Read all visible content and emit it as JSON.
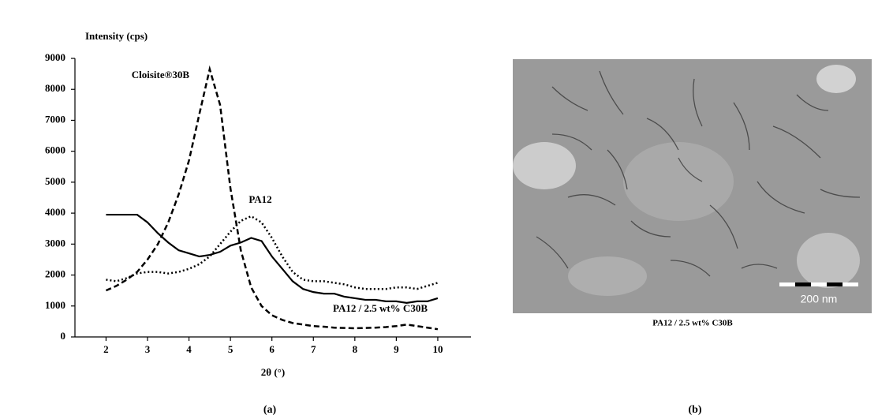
{
  "chart_data": {
    "type": "line",
    "y_label": "Intensity (cps)",
    "x_label": "2θ (°)",
    "x": [
      2,
      2.25,
      2.5,
      2.75,
      3,
      3.25,
      3.5,
      3.75,
      4,
      4.25,
      4.5,
      4.75,
      5,
      5.25,
      5.5,
      5.75,
      6,
      6.25,
      6.5,
      6.75,
      7,
      7.25,
      7.5,
      7.75,
      8,
      8.25,
      8.5,
      8.75,
      9,
      9.25,
      9.5,
      9.75,
      10
    ],
    "series": [
      {
        "name": "Cloisite®30B",
        "color": "#000000",
        "dash": "dashed",
        "values": [
          1500,
          1650,
          1850,
          2100,
          2500,
          3000,
          3700,
          4600,
          5700,
          7200,
          8650,
          7500,
          4800,
          2800,
          1600,
          1000,
          700,
          550,
          450,
          400,
          350,
          330,
          300,
          290,
          280,
          290,
          300,
          320,
          350,
          400,
          350,
          300,
          250
        ]
      },
      {
        "name": "PA12",
        "color": "#000000",
        "dash": "dotted",
        "values": [
          1850,
          1800,
          1900,
          2050,
          2100,
          2100,
          2050,
          2100,
          2200,
          2350,
          2600,
          3000,
          3400,
          3750,
          3900,
          3700,
          3200,
          2600,
          2100,
          1850,
          1800,
          1800,
          1750,
          1700,
          1600,
          1550,
          1550,
          1550,
          1600,
          1600,
          1550,
          1650,
          1750
        ]
      },
      {
        "name": "PA12 / 2.5 wt% C30B",
        "color": "#000000",
        "dash": "solid",
        "values": [
          3950,
          3950,
          3950,
          3950,
          3700,
          3350,
          3050,
          2800,
          2700,
          2600,
          2650,
          2750,
          2950,
          3050,
          3200,
          3100,
          2600,
          2200,
          1800,
          1550,
          1450,
          1400,
          1400,
          1300,
          1250,
          1200,
          1200,
          1150,
          1150,
          1100,
          1150,
          1150,
          1250
        ]
      }
    ],
    "xlim": [
      1.25,
      10.8
    ],
    "xticks": [
      2,
      3,
      4,
      5,
      6,
      7,
      8,
      9,
      10
    ],
    "ylim": [
      0,
      9000
    ],
    "yticks": [
      0,
      1000,
      2000,
      3000,
      4000,
      5000,
      6000,
      7000,
      8000,
      9000
    ],
    "grid": false
  },
  "image": {
    "caption": "PA12 / 2.5 wt% C30B",
    "scale_bar": "200 nm"
  },
  "panel_labels": [
    "(a)",
    "(b)"
  ]
}
